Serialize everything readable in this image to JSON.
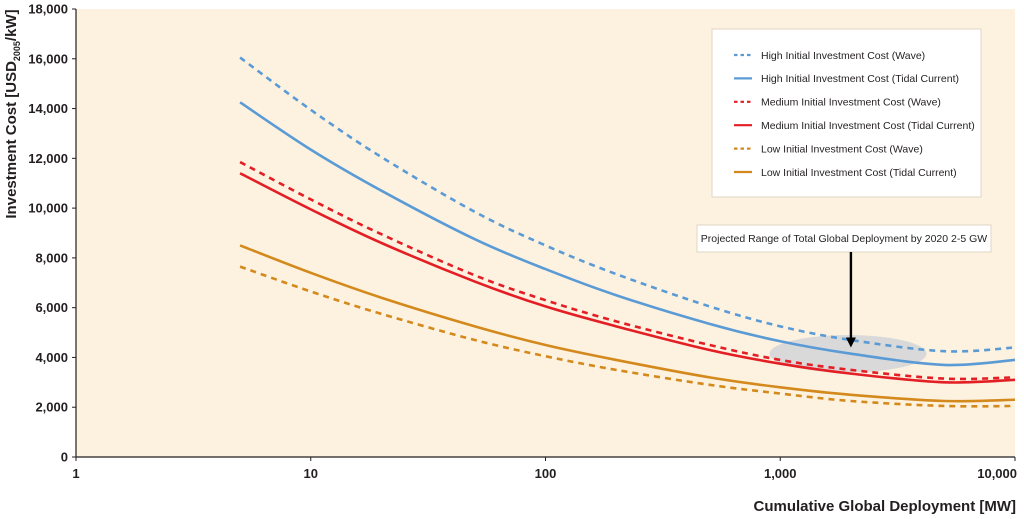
{
  "chart_data": {
    "type": "line",
    "x_scale": "log",
    "xlim": [
      1,
      10000
    ],
    "ylim": [
      0,
      18000
    ],
    "x_ticks": [
      1,
      10,
      100,
      1000,
      10000
    ],
    "x_tick_labels": [
      "1",
      "10",
      "100",
      "1,000",
      "10,000"
    ],
    "y_ticks": [
      0,
      2000,
      4000,
      6000,
      8000,
      10000,
      12000,
      14000,
      16000,
      18000
    ],
    "y_tick_labels": [
      "0",
      "2,000",
      "4,000",
      "6,000",
      "8,000",
      "10,000",
      "12,000",
      "14,000",
      "16,000",
      "18,000"
    ],
    "xlabel": "Cumulative Global Deployment [MW]",
    "ylabel_prefix": "Investment Cost [USD",
    "ylabel_subscript": "2005",
    "ylabel_suffix": "/kW]",
    "grid": false,
    "legend_position": "top-right",
    "background_color": "#fdf2e0",
    "series": [
      {
        "name": "High Initial Investment Cost (Wave)",
        "color": "#5b9bd5",
        "style": "dashed",
        "x": [
          5,
          10,
          20,
          50,
          100,
          200,
          500,
          1000,
          2000,
          5000,
          10000
        ],
        "y": [
          16050,
          13950,
          12050,
          9850,
          8500,
          7350,
          6050,
          5250,
          4700,
          4250,
          4400
        ]
      },
      {
        "name": "High Initial Investment Cost (Tidal Current)",
        "color": "#5b9bd5",
        "style": "solid",
        "x": [
          5,
          10,
          20,
          50,
          100,
          200,
          500,
          1000,
          2000,
          5000,
          10000
        ],
        "y": [
          14250,
          12350,
          10700,
          8750,
          7550,
          6500,
          5350,
          4650,
          4150,
          3700,
          3900
        ]
      },
      {
        "name": "Medium Initial Investment Cost (Wave)",
        "color": "#e31e24",
        "style": "dashed",
        "x": [
          5,
          10,
          20,
          50,
          100,
          200,
          500,
          1000,
          2000,
          5000,
          10000
        ],
        "y": [
          11850,
          10350,
          8950,
          7300,
          6300,
          5450,
          4500,
          3900,
          3500,
          3150,
          3200
        ]
      },
      {
        "name": "Medium Initial Investment Cost (Tidal Current)",
        "color": "#e31e24",
        "style": "solid",
        "x": [
          5,
          10,
          20,
          50,
          100,
          200,
          500,
          1000,
          2000,
          5000,
          10000
        ],
        "y": [
          11400,
          9950,
          8600,
          7050,
          6050,
          5250,
          4300,
          3750,
          3350,
          3000,
          3100
        ]
      },
      {
        "name": "Low Initial Investment Cost (Wave)",
        "color": "#d4891c",
        "style": "dashed",
        "x": [
          5,
          10,
          20,
          50,
          100,
          200,
          500,
          1000,
          2000,
          5000,
          10000
        ],
        "y": [
          7650,
          6650,
          5750,
          4700,
          4050,
          3500,
          2900,
          2550,
          2250,
          2050,
          2050
        ]
      },
      {
        "name": "Low Initial Investment Cost (Tidal Current)",
        "color": "#d4891c",
        "style": "solid",
        "x": [
          5,
          10,
          20,
          50,
          100,
          200,
          500,
          1000,
          2000,
          5000,
          10000
        ],
        "y": [
          8500,
          7400,
          6400,
          5250,
          4500,
          3900,
          3200,
          2800,
          2500,
          2250,
          2300
        ]
      }
    ],
    "annotation": {
      "text": "Projected Range of Total Global Deployment by 2020 2-5 GW",
      "arrow_target": {
        "x": 2000,
        "y": 4400
      },
      "highlight_ellipse": {
        "x_center": 2000,
        "y_center": 4200,
        "x_range": [
          900,
          4200
        ],
        "y_range": [
          3400,
          4900
        ],
        "color": "#d9d9d9"
      }
    }
  }
}
